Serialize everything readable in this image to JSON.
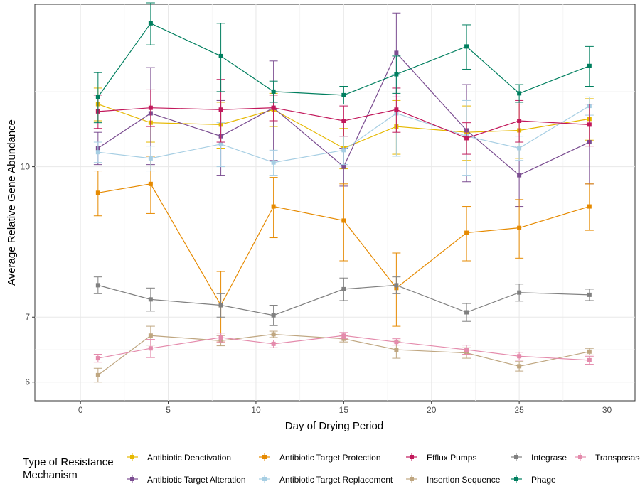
{
  "chart_data": {
    "type": "line",
    "title": "",
    "xlabel": "Day of Drying Period",
    "ylabel": "Average Relative Gene Abundance",
    "y_scale": "log",
    "xlim": [
      -2.6,
      31.6
    ],
    "ylim": [
      5.74,
      14.7
    ],
    "x_ticks": [
      0,
      5,
      10,
      15,
      20,
      25,
      30
    ],
    "y_ticks": [
      6,
      7,
      10
    ],
    "grid": true,
    "legend_position": "bottom",
    "legend_title": "Type of Resistance Mechanism",
    "x": [
      1,
      4,
      8,
      11,
      15,
      18,
      22,
      25,
      29
    ],
    "series": [
      {
        "name": "Antibiotic Deactivation",
        "color": "#E6B800",
        "values": [
          11.6,
          11.1,
          11.05,
          11.45,
          10.45,
          11.0,
          10.85,
          10.9,
          11.2
        ],
        "errors": [
          0.45,
          0.5,
          0.6,
          0.45,
          0.5,
          0.7,
          0.7,
          0.7,
          0.55
        ]
      },
      {
        "name": "Antibiotic Target Alteration",
        "color": "#7B4D91",
        "values": [
          10.45,
          11.35,
          10.75,
          11.5,
          10.0,
          13.1,
          10.9,
          9.8,
          10.6
        ],
        "errors": [
          0.4,
          1.3,
          0.95,
          1.35,
          0.45,
          1.3,
          1.25,
          0.7,
          1.0
        ]
      },
      {
        "name": "Antibiotic Target Protection",
        "color": "#E68A00",
        "values": [
          9.4,
          9.6,
          7.2,
          9.1,
          8.8,
          7.5,
          8.55,
          8.65,
          9.1
        ],
        "errors": [
          0.5,
          0.65,
          0.6,
          0.65,
          0.8,
          0.65,
          0.55,
          0.6,
          0.5
        ]
      },
      {
        "name": "Antibiotic Target Replacement",
        "color": "#A6CEE3",
        "values": [
          10.35,
          10.2,
          10.55,
          10.1,
          10.4,
          11.35,
          10.75,
          10.45,
          11.55
        ],
        "errors": [
          0.25,
          0.3,
          0.55,
          0.3,
          0.35,
          1.1,
          0.95,
          0.3,
          0.25
        ]
      },
      {
        "name": "Efflux Pumps",
        "color": "#C2185B",
        "values": [
          11.4,
          11.5,
          11.45,
          11.5,
          11.15,
          11.45,
          10.7,
          11.15,
          11.05
        ],
        "errors": [
          0.45,
          0.5,
          0.85,
          0.35,
          0.4,
          0.6,
          0.4,
          0.55,
          0.55
        ]
      },
      {
        "name": "Insertion Sequence",
        "color": "#BFA680",
        "values": [
          6.1,
          6.7,
          6.62,
          6.72,
          6.65,
          6.48,
          6.43,
          6.23,
          6.45
        ],
        "errors": [
          0.1,
          0.15,
          0.08,
          0.05,
          0.05,
          0.13,
          0.08,
          0.07,
          0.05
        ]
      },
      {
        "name": "Integrase",
        "color": "#808080",
        "values": [
          7.55,
          7.3,
          7.2,
          7.03,
          7.48,
          7.55,
          7.08,
          7.42,
          7.38
        ],
        "errors": [
          0.15,
          0.2,
          0.2,
          0.17,
          0.2,
          0.15,
          0.15,
          0.15,
          0.1
        ]
      },
      {
        "name": "Phage",
        "color": "#007F5F",
        "values": [
          11.8,
          14.05,
          13.0,
          11.95,
          11.85,
          12.45,
          13.3,
          11.9,
          12.7
        ],
        "errors": [
          0.7,
          0.7,
          1.05,
          0.3,
          0.25,
          0.55,
          0.7,
          0.25,
          0.6
        ]
      },
      {
        "name": "Transposase",
        "color": "#E48BAC",
        "values": [
          6.35,
          6.5,
          6.67,
          6.57,
          6.7,
          6.6,
          6.48,
          6.38,
          6.32
        ],
        "errors": [
          0.06,
          0.14,
          0.07,
          0.06,
          0.05,
          0.05,
          0.07,
          0.06,
          0.06
        ]
      }
    ]
  }
}
